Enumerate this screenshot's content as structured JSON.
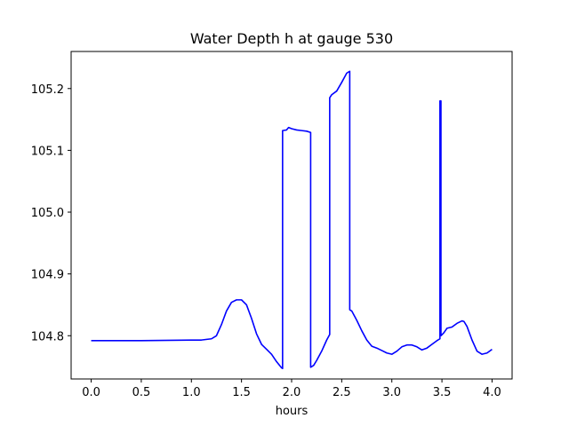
{
  "chart_data": {
    "type": "line",
    "title": "Water Depth h at gauge 530",
    "xlabel": "hours",
    "ylabel": "",
    "xlim": [
      -0.2,
      4.2
    ],
    "ylim": [
      104.73,
      105.26
    ],
    "xticks": [
      0.0,
      0.5,
      1.0,
      1.5,
      2.0,
      2.5,
      3.0,
      3.5,
      4.0
    ],
    "xtick_labels": [
      "0.0",
      "0.5",
      "1.0",
      "1.5",
      "2.0",
      "2.5",
      "3.0",
      "3.5",
      "4.0"
    ],
    "yticks": [
      104.8,
      104.9,
      105.0,
      105.1,
      105.2
    ],
    "ytick_labels": [
      "104.8",
      "104.9",
      "105.0",
      "105.1",
      "105.2"
    ],
    "grid": false,
    "legend": "none",
    "series": [
      {
        "color": "#0000ff",
        "x": [
          0.0,
          0.5,
          1.0,
          1.1,
          1.2,
          1.25,
          1.3,
          1.35,
          1.4,
          1.45,
          1.5,
          1.55,
          1.6,
          1.65,
          1.7,
          1.75,
          1.8,
          1.85,
          1.9,
          1.91,
          1.91,
          1.95,
          1.97,
          2.0,
          2.05,
          2.1,
          2.15,
          2.19,
          2.19,
          2.22,
          2.25,
          2.3,
          2.35,
          2.38,
          2.38,
          2.4,
          2.45,
          2.5,
          2.55,
          2.58,
          2.58,
          2.6,
          2.65,
          2.7,
          2.75,
          2.8,
          2.85,
          2.9,
          2.95,
          3.0,
          3.05,
          3.1,
          3.15,
          3.2,
          3.25,
          3.3,
          3.35,
          3.4,
          3.45,
          3.48,
          3.48,
          3.49,
          3.49,
          3.52,
          3.55,
          3.6,
          3.65,
          3.7,
          3.72,
          3.75,
          3.8,
          3.85,
          3.9,
          3.95,
          4.0
        ],
        "y": [
          104.792,
          104.792,
          104.793,
          104.793,
          104.795,
          104.8,
          104.818,
          104.84,
          104.854,
          104.858,
          104.858,
          104.85,
          104.828,
          104.803,
          104.786,
          104.778,
          104.77,
          104.758,
          104.748,
          104.747,
          105.132,
          105.133,
          105.137,
          105.135,
          105.133,
          105.132,
          105.131,
          105.129,
          104.749,
          104.752,
          104.76,
          104.775,
          104.793,
          104.802,
          105.185,
          105.19,
          105.196,
          105.21,
          105.225,
          105.228,
          104.842,
          104.84,
          104.825,
          104.808,
          104.793,
          104.783,
          104.78,
          104.776,
          104.772,
          104.77,
          104.775,
          104.782,
          104.785,
          104.785,
          104.782,
          104.777,
          104.78,
          104.786,
          104.792,
          104.795,
          105.18,
          105.18,
          104.8,
          104.805,
          104.812,
          104.814,
          104.82,
          104.824,
          104.823,
          104.815,
          104.793,
          104.775,
          104.77,
          104.772,
          104.778
        ]
      }
    ]
  }
}
